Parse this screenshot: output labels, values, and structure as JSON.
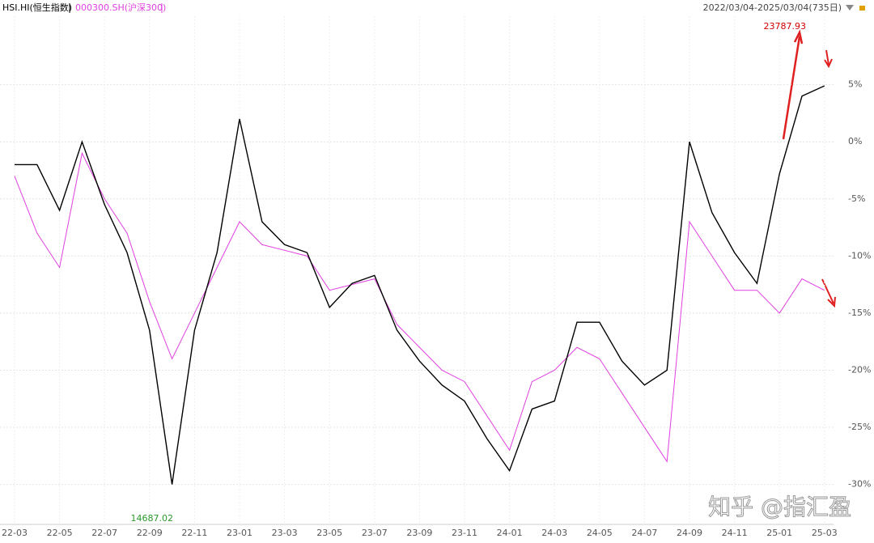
{
  "chart_data": {
    "type": "line",
    "legend": [
      "HSI.HI(恒生指数)",
      "000300.SH(沪深300)"
    ],
    "subtitle": "2022/03/04-2025/03/04(735日)",
    "categories": [
      "22-03",
      null,
      "22-05",
      null,
      "22-07",
      null,
      "22-09",
      null,
      "22-11",
      null,
      "23-01",
      null,
      "23-03",
      null,
      "23-05",
      null,
      "23-07",
      null,
      "23-09",
      null,
      "23-11",
      null,
      "24-01",
      null,
      "24-03",
      null,
      "24-05",
      null,
      "24-07",
      null,
      "24-09",
      null,
      "24-11",
      null,
      "25-01",
      null,
      "25-03"
    ],
    "series": [
      {
        "name": "HSI.HI(恒生指数)",
        "color": "#000000",
        "values": [
          -2,
          -2,
          -6,
          0,
          -5.5,
          -9.7,
          -16.5,
          -30,
          -16.5,
          -9.7,
          2,
          -7,
          -9,
          -9.7,
          -14.5,
          -12.4,
          -11.7,
          -16.5,
          -19.2,
          -21.3,
          -22.7,
          -26,
          -28.8,
          -23.4,
          -22.7,
          -15.8,
          -15.8,
          -19.2,
          -21.3,
          -20,
          0,
          -6.2,
          -9.7,
          -12.4,
          -2.8,
          4,
          4.9
        ]
      },
      {
        "name": "000300.SH(沪深300)",
        "color": "#e040e0",
        "values": [
          -3,
          -8,
          -11,
          -1,
          -5,
          -8,
          -14,
          -19,
          -15,
          -11,
          -7,
          -9,
          -9.5,
          -10,
          -13,
          -12.5,
          -12,
          -16,
          -18,
          -20,
          -21,
          -24,
          -27,
          -21,
          -20,
          -18,
          -19,
          -22,
          -25,
          -28,
          -7,
          -10,
          -13,
          -13,
          -15,
          -12,
          -13
        ]
      }
    ],
    "ylim": [
      -33.5,
      11
    ],
    "yticks": [
      {
        "value": 5,
        "label": "5%"
      },
      {
        "value": 0,
        "label": "0%"
      },
      {
        "value": -5,
        "label": "-5%"
      },
      {
        "value": -10,
        "label": "-10%"
      },
      {
        "value": -15,
        "label": "-15%"
      },
      {
        "value": -20,
        "label": "-20%"
      },
      {
        "value": -25,
        "label": "-25%"
      },
      {
        "value": -30,
        "label": "-30%"
      }
    ],
    "grid": true,
    "annotations": [
      "23787.93",
      "14687.02"
    ],
    "watermark": "知乎 @指汇盈"
  }
}
